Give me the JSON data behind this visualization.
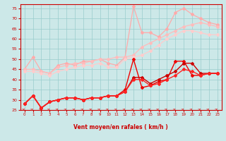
{
  "xlabel": "Vent moyen/en rafales ( km/h )",
  "xlim": [
    -0.5,
    23.5
  ],
  "ylim": [
    25,
    77
  ],
  "yticks": [
    25,
    30,
    35,
    40,
    45,
    50,
    55,
    60,
    65,
    70,
    75
  ],
  "xticks": [
    0,
    1,
    2,
    3,
    4,
    5,
    6,
    7,
    8,
    9,
    10,
    11,
    12,
    13,
    14,
    15,
    16,
    17,
    18,
    19,
    20,
    21,
    22,
    23
  ],
  "bg_color": "#cce8e8",
  "grid_color": "#99cccc",
  "series": [
    {
      "x": [
        0,
        1,
        2,
        3,
        4,
        5,
        6,
        7,
        8,
        9,
        10,
        11,
        12,
        13,
        14,
        15,
        16,
        17,
        18,
        19,
        20,
        21,
        22,
        23
      ],
      "y": [
        45,
        51,
        44,
        43,
        47,
        48,
        47,
        49,
        49,
        50,
        48,
        47,
        51,
        76,
        63,
        63,
        61,
        65,
        73,
        75,
        72,
        70,
        68,
        67
      ],
      "color": "#ffaaaa",
      "lw": 0.9,
      "marker": "D",
      "ms": 2.0
    },
    {
      "x": [
        0,
        1,
        2,
        3,
        4,
        5,
        6,
        7,
        8,
        9,
        10,
        11,
        12,
        13,
        14,
        15,
        16,
        17,
        18,
        19,
        20,
        21,
        22,
        23
      ],
      "y": [
        45,
        45,
        44,
        43,
        46,
        47,
        48,
        48,
        49,
        50,
        50,
        51,
        51,
        52,
        56,
        58,
        60,
        62,
        64,
        66,
        67,
        68,
        67,
        66
      ],
      "color": "#ffbbbb",
      "lw": 0.9,
      "marker": "D",
      "ms": 2.0
    },
    {
      "x": [
        0,
        1,
        2,
        3,
        4,
        5,
        6,
        7,
        8,
        9,
        10,
        11,
        12,
        13,
        14,
        15,
        16,
        17,
        18,
        19,
        20,
        21,
        22,
        23
      ],
      "y": [
        44,
        44,
        43,
        42,
        44,
        45,
        46,
        47,
        47,
        48,
        46,
        46,
        50,
        51,
        52,
        54,
        57,
        60,
        62,
        64,
        64,
        63,
        62,
        62
      ],
      "color": "#ffcccc",
      "lw": 0.9,
      "marker": "D",
      "ms": 2.0
    },
    {
      "x": [
        0,
        1,
        2,
        3,
        4,
        5,
        6,
        7,
        8,
        9,
        10,
        11,
        12,
        13,
        14,
        15,
        16,
        17,
        18,
        19,
        20,
        21,
        22,
        23
      ],
      "y": [
        28,
        32,
        26,
        29,
        30,
        31,
        31,
        30,
        31,
        31,
        32,
        32,
        35,
        50,
        36,
        37,
        39,
        40,
        49,
        49,
        42,
        42,
        43,
        43
      ],
      "color": "#ee0000",
      "lw": 1.0,
      "marker": "D",
      "ms": 2.0
    },
    {
      "x": [
        0,
        1,
        2,
        3,
        4,
        5,
        6,
        7,
        8,
        9,
        10,
        11,
        12,
        13,
        14,
        15,
        16,
        17,
        18,
        19,
        20,
        21,
        22,
        23
      ],
      "y": [
        28,
        32,
        26,
        29,
        30,
        31,
        31,
        30,
        31,
        31,
        32,
        32,
        34,
        41,
        41,
        38,
        40,
        42,
        44,
        48,
        48,
        43,
        43,
        43
      ],
      "color": "#cc0000",
      "lw": 1.0,
      "marker": "D",
      "ms": 2.0
    },
    {
      "x": [
        0,
        1,
        2,
        3,
        4,
        5,
        6,
        7,
        8,
        9,
        10,
        11,
        12,
        13,
        14,
        15,
        16,
        17,
        18,
        19,
        20,
        21,
        22,
        23
      ],
      "y": [
        28,
        32,
        26,
        29,
        30,
        31,
        31,
        30,
        31,
        31,
        32,
        32,
        34,
        40,
        40,
        37,
        38,
        40,
        42,
        45,
        44,
        42,
        43,
        43
      ],
      "color": "#ff2222",
      "lw": 1.0,
      "marker": "D",
      "ms": 2.0
    }
  ],
  "arrow_color": "#dd2222"
}
